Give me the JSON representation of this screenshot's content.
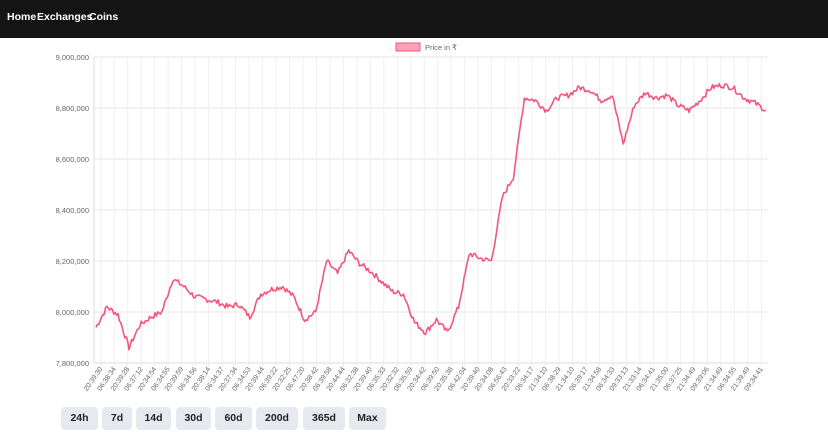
{
  "nav": {
    "home": "Home",
    "exchanges": "Exchanges",
    "coins": "Coins"
  },
  "time_ranges": [
    "24h",
    "7d",
    "14d",
    "30d",
    "60d",
    "200d",
    "365d",
    "Max"
  ],
  "colors": {
    "navbar": "#141414",
    "series_line": "#f4567b",
    "series_fill": "#f8a3b6",
    "button_bg": "#e6e9ef"
  },
  "chart_data": {
    "type": "line",
    "legend": {
      "label": "Price in ₹",
      "position": "top-center"
    },
    "y_ticks": [
      "9,000,000",
      "8,800,000",
      "8,600,000",
      "8,400,000",
      "8,200,000",
      "8,000,000",
      "7,800,000"
    ],
    "ylim": [
      7800000,
      9000000
    ],
    "grid": true,
    "x_tick_labels": [
      "20:39:30",
      "06:38:34",
      "20:39:28",
      "06:37:12",
      "20:34:54",
      "06:34:55",
      "20:39:59",
      "06:34:56",
      "20:38:14",
      "06:34:37",
      "20:37:34",
      "06:34:53",
      "20:39:44",
      "06:39:22",
      "20:32:25",
      "06:47:20",
      "20:38:42",
      "06:39:58",
      "20:44:44",
      "06:32:38",
      "20:39:40",
      "06:35:33",
      "20:32:32",
      "06:35:59",
      "20:34:42",
      "06:39:50",
      "20:35:38",
      "06:42:04",
      "20:39:40",
      "20:34:08",
      "06:56:43",
      "20:33:22",
      "06:34:17",
      "21:34:10",
      "06:38:29",
      "21:34:10",
      "06:39:17",
      "21:34:58",
      "06:34:33",
      "09:33:13",
      "21:33:14",
      "06:34:41",
      "21:35:00",
      "06:37:25",
      "21:34:49",
      "09:39:06",
      "21:34:49",
      "06:34:55",
      "21:39:49",
      "09:34:41"
    ],
    "anchor_values": [
      7940000,
      8020000,
      7990000,
      7860000,
      7950000,
      7980000,
      8000000,
      8130000,
      8100000,
      8060000,
      8050000,
      8040000,
      8020000,
      8030000,
      7980000,
      8070000,
      8090000,
      8100000,
      8060000,
      7970000,
      8000000,
      8200000,
      8150000,
      8240000,
      8190000,
      8160000,
      8120000,
      8080000,
      8070000,
      7960000,
      7920000,
      7970000,
      7920000,
      8020000,
      8230000,
      8210000,
      8200000,
      8450000,
      8530000,
      8840000,
      8830000,
      8790000,
      8840000,
      8850000,
      8880000,
      8870000,
      8830000,
      8850000,
      8660000,
      8810000,
      8860000,
      8840000,
      8850000,
      8810000,
      8790000,
      8830000,
      8880000,
      8890000,
      8880000,
      8840000,
      8820000,
      8790000
    ]
  }
}
